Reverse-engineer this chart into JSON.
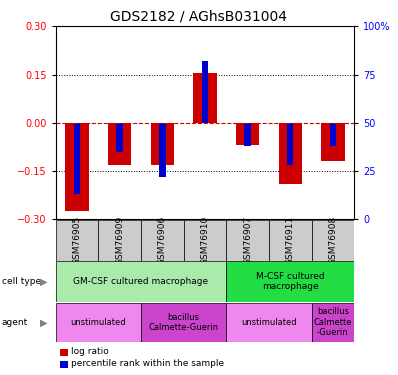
{
  "title": "GDS2182 / AGhsB031004",
  "samples": [
    "GSM76905",
    "GSM76909",
    "GSM76906",
    "GSM76910",
    "GSM76907",
    "GSM76911",
    "GSM76908"
  ],
  "log_ratio": [
    -0.275,
    -0.13,
    -0.13,
    0.155,
    -0.07,
    -0.19,
    -0.12
  ],
  "percentile_rank": [
    13,
    35,
    22,
    82,
    38,
    28,
    38
  ],
  "ylim": [
    -0.3,
    0.3
  ],
  "right_ylim": [
    0,
    100
  ],
  "right_yticks": [
    0,
    25,
    50,
    75,
    100
  ],
  "right_yticklabels": [
    "0",
    "25",
    "50",
    "75",
    "100%"
  ],
  "left_yticks": [
    -0.3,
    -0.15,
    0,
    0.15,
    0.3
  ],
  "dotted_hlines": [
    -0.15,
    0.15
  ],
  "log_bar_width": 0.55,
  "pct_bar_width": 0.15,
  "cell_type_data": [
    {
      "span": [
        0,
        3
      ],
      "label": "GM-CSF cultured macrophage",
      "color": "#aaeaaa"
    },
    {
      "span": [
        4,
        6
      ],
      "label": "M-CSF cultured\nmacrophage",
      "color": "#22dd44"
    }
  ],
  "agent_data": [
    {
      "span": [
        0,
        1
      ],
      "label": "unstimulated",
      "color": "#ee88ee"
    },
    {
      "span": [
        2,
        3
      ],
      "label": "bacillus\nCalmette-Guerin",
      "color": "#cc44cc"
    },
    {
      "span": [
        4,
        5
      ],
      "label": "unstimulated",
      "color": "#ee88ee"
    },
    {
      "span": [
        6,
        6
      ],
      "label": "bacillus\nCalmette\n-Guerin",
      "color": "#cc44cc"
    }
  ],
  "log_ratio_color": "#cc0000",
  "percentile_color": "#0000cc",
  "sample_box_color": "#cccccc",
  "title_fontsize": 10,
  "tick_fontsize": 7,
  "label_fontsize": 6,
  "annotation_fontsize": 6.5
}
